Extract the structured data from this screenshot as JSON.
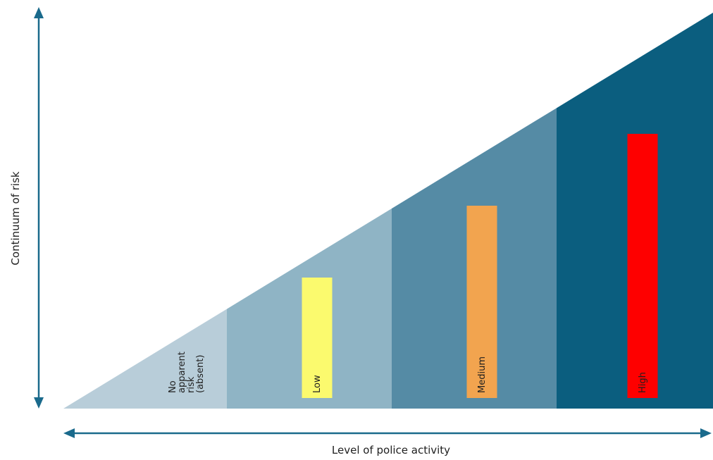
{
  "axes": {
    "y_label": "Continuum of risk",
    "x_label": "Level of police activity",
    "arrow_color": "#1a6a8c"
  },
  "levels": [
    {
      "id": "none",
      "label_lines": [
        "No",
        "apparent",
        "risk",
        "(absent)"
      ],
      "zone_color": "#b8cdd9",
      "marker": false,
      "marker_color": "",
      "level": 0
    },
    {
      "id": "low",
      "label_lines": [
        "Low"
      ],
      "zone_color": "#8fb4c5",
      "marker": true,
      "marker_color": "#fbfa6e",
      "level": 1
    },
    {
      "id": "medium",
      "label_lines": [
        "Medium"
      ],
      "zone_color": "#558ba5",
      "marker": true,
      "marker_color": "#f2a44f",
      "level": 2
    },
    {
      "id": "high",
      "label_lines": [
        "High"
      ],
      "zone_color": "#0b5e7f",
      "marker": true,
      "marker_color": "#fe0000",
      "level": 3
    }
  ]
}
